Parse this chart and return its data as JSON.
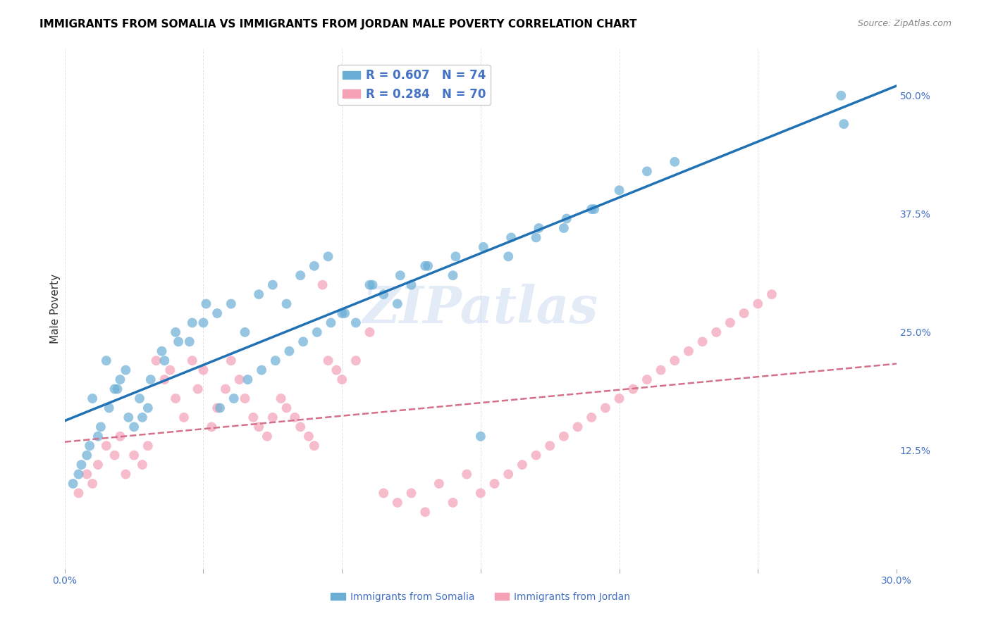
{
  "title": "IMMIGRANTS FROM SOMALIA VS IMMIGRANTS FROM JORDAN MALE POVERTY CORRELATION CHART",
  "source": "Source: ZipAtlas.com",
  "xlabel_bottom": "",
  "ylabel": "Male Poverty",
  "xlim": [
    0.0,
    0.3
  ],
  "ylim": [
    0.0,
    0.55
  ],
  "xticks": [
    0.0,
    0.05,
    0.1,
    0.15,
    0.2,
    0.25,
    0.3
  ],
  "xticklabels": [
    "0.0%",
    "",
    "",
    "",
    "",
    "",
    "30.0%"
  ],
  "yticks_right": [
    0.0,
    0.125,
    0.25,
    0.375,
    0.5
  ],
  "yticklabels_right": [
    "",
    "12.5%",
    "25.0%",
    "37.5%",
    "50.0%"
  ],
  "somalia_R": "0.607",
  "somalia_N": "74",
  "jordan_R": "0.284",
  "jordan_N": "70",
  "somalia_color": "#6aaed6",
  "jordan_color": "#f4a0b5",
  "somalia_line_color": "#2171b5",
  "jordan_line_color": "#d4708a",
  "watermark": "ZIPatlas",
  "legend_somalia": "Immigrants from Somalia",
  "legend_jordan": "Immigrants from Jordan",
  "somalia_scatter_x": [
    0.01,
    0.02,
    0.015,
    0.025,
    0.03,
    0.005,
    0.008,
    0.012,
    0.018,
    0.022,
    0.028,
    0.035,
    0.04,
    0.045,
    0.05,
    0.055,
    0.06,
    0.065,
    0.07,
    0.075,
    0.08,
    0.085,
    0.09,
    0.095,
    0.1,
    0.105,
    0.11,
    0.115,
    0.12,
    0.125,
    0.13,
    0.14,
    0.15,
    0.16,
    0.17,
    0.18,
    0.19,
    0.2,
    0.21,
    0.22,
    0.28,
    0.003,
    0.006,
    0.009,
    0.013,
    0.016,
    0.019,
    0.023,
    0.027,
    0.031,
    0.036,
    0.041,
    0.046,
    0.051,
    0.056,
    0.061,
    0.066,
    0.071,
    0.076,
    0.081,
    0.086,
    0.091,
    0.096,
    0.101,
    0.111,
    0.121,
    0.131,
    0.141,
    0.151,
    0.161,
    0.171,
    0.181,
    0.191,
    0.281
  ],
  "somalia_scatter_y": [
    0.18,
    0.2,
    0.22,
    0.15,
    0.17,
    0.1,
    0.12,
    0.14,
    0.19,
    0.21,
    0.16,
    0.23,
    0.25,
    0.24,
    0.26,
    0.27,
    0.28,
    0.25,
    0.29,
    0.3,
    0.28,
    0.31,
    0.32,
    0.33,
    0.27,
    0.26,
    0.3,
    0.29,
    0.28,
    0.3,
    0.32,
    0.31,
    0.14,
    0.33,
    0.35,
    0.36,
    0.38,
    0.4,
    0.42,
    0.43,
    0.5,
    0.09,
    0.11,
    0.13,
    0.15,
    0.17,
    0.19,
    0.16,
    0.18,
    0.2,
    0.22,
    0.24,
    0.26,
    0.28,
    0.17,
    0.18,
    0.2,
    0.21,
    0.22,
    0.23,
    0.24,
    0.25,
    0.26,
    0.27,
    0.3,
    0.31,
    0.32,
    0.33,
    0.34,
    0.35,
    0.36,
    0.37,
    0.38,
    0.47
  ],
  "jordan_scatter_x": [
    0.005,
    0.008,
    0.01,
    0.012,
    0.015,
    0.018,
    0.02,
    0.022,
    0.025,
    0.028,
    0.03,
    0.033,
    0.036,
    0.038,
    0.04,
    0.043,
    0.046,
    0.048,
    0.05,
    0.053,
    0.055,
    0.058,
    0.06,
    0.063,
    0.065,
    0.068,
    0.07,
    0.073,
    0.075,
    0.078,
    0.08,
    0.083,
    0.085,
    0.088,
    0.09,
    0.093,
    0.095,
    0.098,
    0.1,
    0.105,
    0.11,
    0.115,
    0.12,
    0.125,
    0.13,
    0.135,
    0.14,
    0.145,
    0.15,
    0.155,
    0.16,
    0.165,
    0.17,
    0.175,
    0.18,
    0.185,
    0.19,
    0.195,
    0.2,
    0.205,
    0.21,
    0.215,
    0.22,
    0.225,
    0.23,
    0.235,
    0.24,
    0.245,
    0.25,
    0.255
  ],
  "jordan_scatter_y": [
    0.08,
    0.1,
    0.09,
    0.11,
    0.13,
    0.12,
    0.14,
    0.1,
    0.12,
    0.11,
    0.13,
    0.22,
    0.2,
    0.21,
    0.18,
    0.16,
    0.22,
    0.19,
    0.21,
    0.15,
    0.17,
    0.19,
    0.22,
    0.2,
    0.18,
    0.16,
    0.15,
    0.14,
    0.16,
    0.18,
    0.17,
    0.16,
    0.15,
    0.14,
    0.13,
    0.3,
    0.22,
    0.21,
    0.2,
    0.22,
    0.25,
    0.08,
    0.07,
    0.08,
    0.06,
    0.09,
    0.07,
    0.1,
    0.08,
    0.09,
    0.1,
    0.11,
    0.12,
    0.13,
    0.14,
    0.15,
    0.16,
    0.17,
    0.18,
    0.19,
    0.2,
    0.21,
    0.22,
    0.23,
    0.24,
    0.25,
    0.26,
    0.27,
    0.28,
    0.29
  ],
  "background_color": "#ffffff",
  "grid_color": "#dddddd",
  "tick_label_color": "#4472c4",
  "title_color": "#000000",
  "title_fontsize": 11,
  "axis_label_fontsize": 11,
  "tick_fontsize": 10
}
